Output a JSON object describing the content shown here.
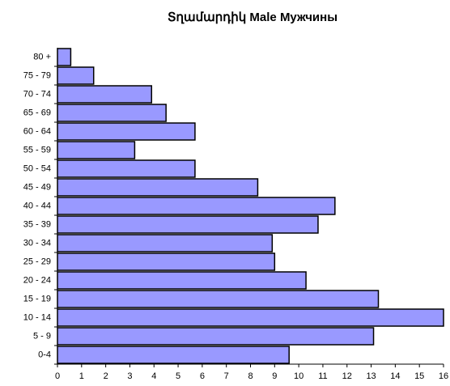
{
  "chart_data": {
    "type": "barh",
    "title": "Տղամարդիկ Male  Мужчины",
    "categories": [
      "0-4",
      "5 - 9",
      "10 - 14",
      "15 - 19",
      "20 - 24",
      "25 - 29",
      "30 - 34",
      "35 - 39",
      "40 - 44",
      "45 - 49",
      "50 - 54",
      "55 - 59",
      "60 - 64",
      "65 - 69",
      "70 - 74",
      "75 - 79",
      "80 +"
    ],
    "values": [
      9.6,
      13.1,
      16.0,
      13.3,
      10.3,
      9.0,
      8.9,
      10.8,
      11.5,
      8.3,
      5.7,
      3.2,
      5.7,
      4.5,
      3.9,
      1.5,
      0.55
    ],
    "color": "#9999ff",
    "xlim": [
      0,
      16
    ],
    "xticks": [
      0,
      1,
      2,
      3,
      4,
      5,
      6,
      7,
      8,
      9,
      10,
      11,
      12,
      13,
      14,
      15,
      16
    ],
    "grid": false
  }
}
